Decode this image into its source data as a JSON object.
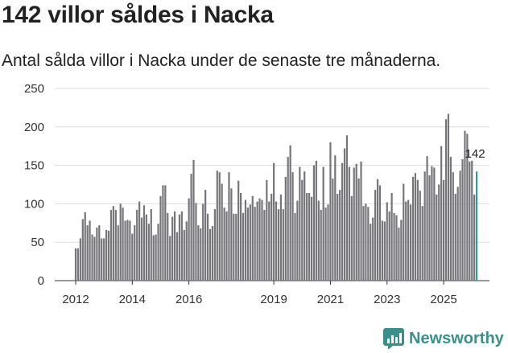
{
  "chart_data": {
    "type": "bar",
    "title": "142 villor såldes i Nacka",
    "subtitle": "Antal sålda villor i Nacka under de senaste tre månaderna.",
    "xlabel": "",
    "ylabel": "",
    "ylim": [
      0,
      250
    ],
    "yticks": [
      "0",
      "50",
      "100",
      "150",
      "200",
      "250"
    ],
    "xtick_labels": [
      {
        "label": "2012",
        "index": 0
      },
      {
        "label": "2014",
        "index": 24
      },
      {
        "label": "2016",
        "index": 48
      },
      {
        "label": "2019",
        "index": 84
      },
      {
        "label": "2021",
        "index": 108
      },
      {
        "label": "2023",
        "index": 132
      },
      {
        "label": "2025",
        "index": 156
      }
    ],
    "grid": true,
    "highlight": {
      "label": "142",
      "value": 142
    },
    "bar_color": "#76757a",
    "highlight_color": "#2a9d95",
    "values": [
      42,
      42,
      55,
      80,
      89,
      72,
      78,
      60,
      57,
      69,
      72,
      55,
      55,
      66,
      65,
      92,
      97,
      92,
      72,
      100,
      95,
      78,
      79,
      78,
      61,
      72,
      92,
      103,
      82,
      98,
      86,
      74,
      93,
      59,
      60,
      74,
      110,
      124,
      124,
      88,
      58,
      83,
      90,
      63,
      86,
      90,
      66,
      77,
      107,
      139,
      157,
      101,
      72,
      68,
      100,
      118,
      87,
      67,
      71,
      93,
      143,
      141,
      126,
      95,
      90,
      141,
      120,
      87,
      87,
      130,
      114,
      88,
      105,
      95,
      99,
      110,
      96,
      103,
      107,
      105,
      92,
      131,
      103,
      113,
      153,
      103,
      93,
      112,
      93,
      135,
      161,
      176,
      141,
      88,
      104,
      148,
      131,
      142,
      114,
      114,
      109,
      150,
      156,
      104,
      92,
      148,
      95,
      99,
      180,
      133,
      163,
      113,
      118,
      153,
      172,
      189,
      148,
      110,
      147,
      152,
      133,
      155,
      97,
      100,
      96,
      74,
      82,
      118,
      132,
      124,
      78,
      77,
      102,
      90,
      114,
      88,
      85,
      69,
      79,
      126,
      103,
      105,
      99,
      135,
      140,
      131,
      117,
      97,
      142,
      162,
      137,
      149,
      147,
      112,
      125,
      175,
      131,
      210,
      217,
      161,
      141,
      113,
      122,
      143,
      158,
      195,
      191,
      155,
      156,
      112,
      142
    ]
  },
  "brand": {
    "name": "Newsworthy"
  }
}
